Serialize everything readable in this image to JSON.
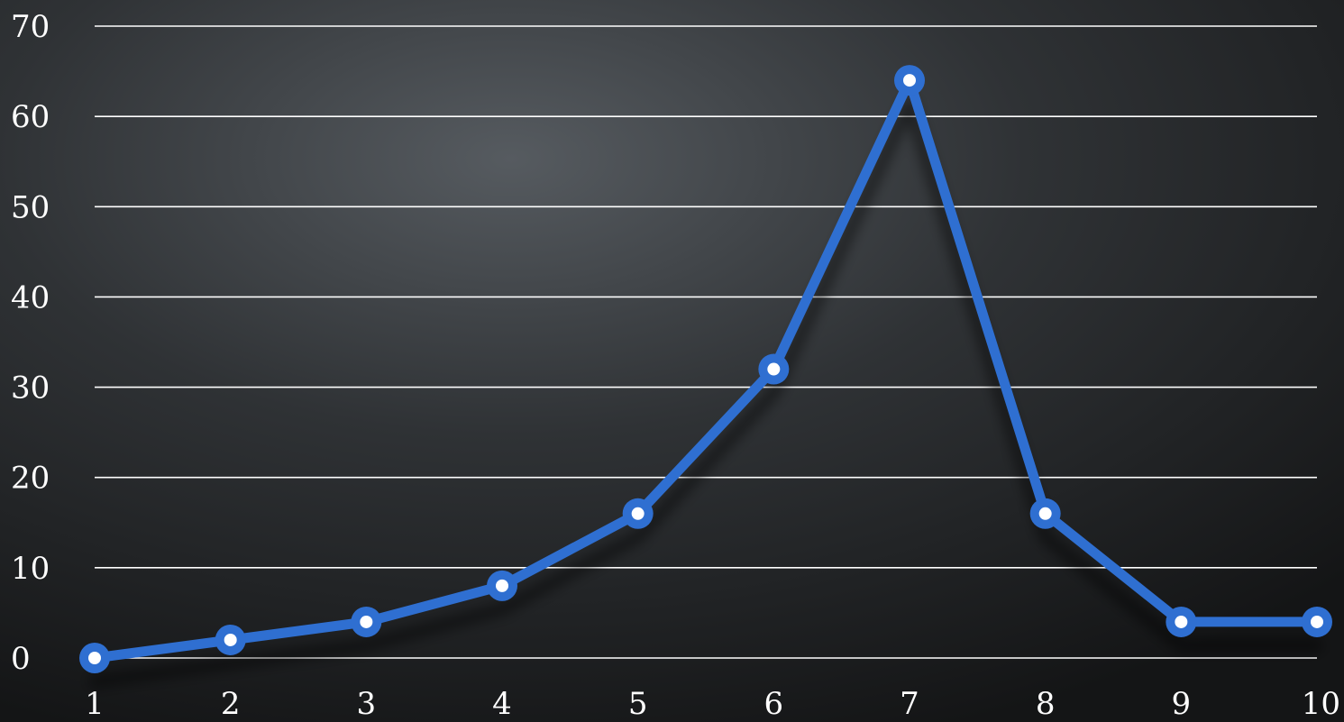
{
  "chart_data": {
    "type": "line",
    "title": "",
    "xlabel": "",
    "ylabel": "",
    "categories": [
      "1",
      "2",
      "3",
      "4",
      "5",
      "6",
      "7",
      "8",
      "9",
      "10"
    ],
    "series": [
      {
        "values": [
          0,
          2,
          4,
          8,
          16,
          32,
          64,
          16,
          4,
          4
        ],
        "color": "#2f6fd1",
        "marker_fill": "#ffffff"
      }
    ],
    "ylim": [
      0,
      70
    ],
    "yticks": [
      "0",
      "10",
      "20",
      "30",
      "40",
      "50",
      "60",
      "70"
    ],
    "grid": true,
    "legend": "none",
    "background": "#1a1b1d"
  }
}
